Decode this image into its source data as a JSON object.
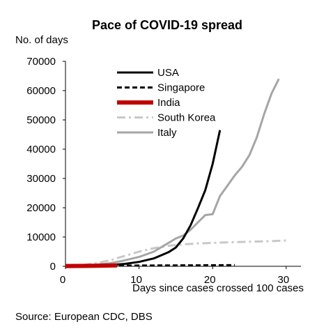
{
  "chart_data": {
    "type": "line",
    "title": "Pace of COVID-19 spread",
    "ylabel": "No. of days",
    "xlabel": "Days since cases crossed 100 cases",
    "source": "Source: European CDC, DBS",
    "xlim": [
      0,
      32
    ],
    "ylim": [
      0,
      70000
    ],
    "x_ticks": [
      0,
      10,
      20,
      30
    ],
    "y_ticks": [
      0,
      10000,
      20000,
      30000,
      40000,
      50000,
      60000,
      70000
    ],
    "grid": false,
    "legend_position": "top-center",
    "series": [
      {
        "name": "USA",
        "color": "#000000",
        "style": "solid",
        "x": [
          0,
          2,
          4,
          6,
          8,
          10,
          12,
          14,
          15,
          16,
          17,
          18,
          19,
          20,
          21
        ],
        "y": [
          100,
          160,
          250,
          400,
          800,
          1500,
          2700,
          4800,
          6400,
          9500,
          14000,
          19800,
          26000,
          35000,
          46500
        ]
      },
      {
        "name": "Singapore",
        "color": "#000000",
        "style": "dashed",
        "x": [
          0,
          5,
          10,
          15,
          20,
          23
        ],
        "y": [
          100,
          200,
          260,
          300,
          350,
          400
        ]
      },
      {
        "name": "India",
        "color": "#c00000",
        "style": "solid",
        "x": [
          0,
          2,
          4,
          6,
          7
        ],
        "y": [
          100,
          130,
          180,
          250,
          320
        ]
      },
      {
        "name": "South Korea",
        "color": "#c8c8c8",
        "style": "dash-dot",
        "x": [
          0,
          2,
          4,
          6,
          8,
          10,
          12,
          14,
          16,
          18,
          20,
          22,
          25,
          28,
          30
        ],
        "y": [
          100,
          300,
          1000,
          2000,
          3500,
          5000,
          6200,
          7000,
          7500,
          7800,
          8000,
          8200,
          8400,
          8600,
          8800
        ]
      },
      {
        "name": "Italy",
        "color": "#a5a5a5",
        "style": "solid",
        "x": [
          0,
          2,
          4,
          6,
          8,
          10,
          12,
          14,
          15,
          16,
          17,
          18,
          19,
          20,
          21,
          22,
          23,
          24,
          25,
          26,
          27,
          28,
          29
        ],
        "y": [
          100,
          200,
          500,
          1000,
          2000,
          3200,
          5000,
          8000,
          9500,
          10500,
          12500,
          15000,
          17500,
          17800,
          24000,
          27500,
          31000,
          34000,
          38000,
          44000,
          52000,
          59000,
          64000
        ]
      }
    ]
  }
}
